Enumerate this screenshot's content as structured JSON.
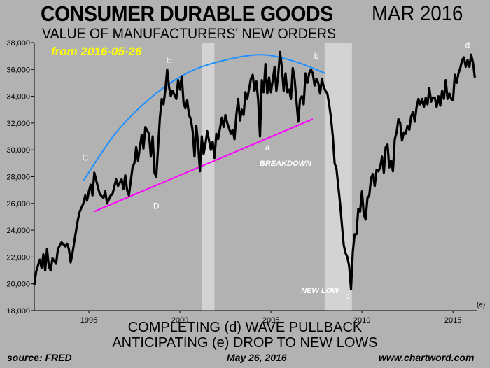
{
  "header": {
    "title": "CONSUMER DURABLE GOODS",
    "date": "MAR 2016",
    "subtitle": "VALUE OF MANUFACTURERS' NEW ORDERS",
    "from_date": "from 2016-05-26"
  },
  "captions": {
    "line1": "COMPLETING (d) WAVE PULLBACK",
    "line2": "ANTICIPATING (e) DROP TO NEW LOWS"
  },
  "footer": {
    "source": "source: FRED",
    "date": "May 26, 2016",
    "site": "www.chartword.com"
  },
  "colors": {
    "background": "#b2b2b2",
    "recession_band": "#d3d3d3",
    "series": "#000000",
    "arc": "#1e90ff",
    "trendline": "#ff00ff",
    "from_date": "#ffff00",
    "annotation": "#ffffff"
  },
  "chart_data": {
    "type": "line",
    "title": "CONSUMER DURABLE GOODS",
    "subtitle": "VALUE OF MANUFACTURERS' NEW ORDERS",
    "xlim": [
      1992,
      2016.3
    ],
    "ylim": [
      18000,
      38000
    ],
    "x_ticks": [
      1995,
      2000,
      2005,
      2010,
      2015
    ],
    "y_ticks": [
      "18,000",
      "20,000",
      "22,000",
      "24,000",
      "26,000",
      "28,000",
      "30,000",
      "32,000",
      "34,000",
      "36,000",
      "38,000"
    ],
    "grid": false,
    "recession_bands": [
      [
        2001.2,
        2001.9
      ],
      [
        2007.95,
        2009.45
      ]
    ],
    "series": [
      {
        "color": "#000000",
        "points": [
          [
            1992.0,
            19900
          ],
          [
            1992.1,
            20900
          ],
          [
            1992.3,
            21800
          ],
          [
            1992.4,
            21200
          ],
          [
            1992.5,
            22200
          ],
          [
            1992.6,
            21000
          ],
          [
            1992.7,
            22600
          ],
          [
            1992.8,
            21300
          ],
          [
            1992.9,
            21000
          ],
          [
            1993.0,
            21900
          ],
          [
            1993.2,
            21500
          ],
          [
            1993.3,
            22600
          ],
          [
            1993.5,
            23100
          ],
          [
            1993.7,
            22800
          ],
          [
            1993.8,
            23000
          ],
          [
            1993.9,
            22600
          ],
          [
            1994.0,
            21600
          ],
          [
            1994.1,
            22300
          ],
          [
            1994.3,
            24000
          ],
          [
            1994.4,
            24800
          ],
          [
            1994.5,
            25400
          ],
          [
            1994.7,
            26000
          ],
          [
            1994.8,
            26600
          ],
          [
            1994.9,
            26200
          ],
          [
            1995.0,
            26900
          ],
          [
            1995.1,
            27400
          ],
          [
            1995.2,
            26600
          ],
          [
            1995.3,
            28300
          ],
          [
            1995.5,
            27200
          ],
          [
            1995.6,
            26700
          ],
          [
            1995.8,
            26400
          ],
          [
            1995.9,
            26900
          ],
          [
            1996.0,
            26000
          ],
          [
            1996.2,
            26600
          ],
          [
            1996.3,
            26700
          ],
          [
            1996.5,
            27800
          ],
          [
            1996.6,
            27300
          ],
          [
            1996.8,
            27800
          ],
          [
            1996.9,
            27100
          ],
          [
            1997.0,
            28100
          ],
          [
            1997.1,
            27000
          ],
          [
            1997.2,
            26600
          ],
          [
            1997.4,
            28700
          ],
          [
            1997.5,
            29000
          ],
          [
            1997.6,
            30200
          ],
          [
            1997.7,
            29200
          ],
          [
            1997.9,
            31100
          ],
          [
            1998.0,
            30100
          ],
          [
            1998.1,
            31700
          ],
          [
            1998.3,
            31200
          ],
          [
            1998.4,
            29500
          ],
          [
            1998.5,
            31000
          ],
          [
            1998.6,
            28300
          ],
          [
            1998.7,
            28000
          ],
          [
            1998.9,
            32400
          ],
          [
            1999.0,
            33800
          ],
          [
            1999.1,
            33400
          ],
          [
            1999.2,
            34500
          ],
          [
            1999.3,
            36000
          ],
          [
            1999.4,
            34700
          ],
          [
            1999.5,
            34000
          ],
          [
            1999.6,
            34400
          ],
          [
            1999.8,
            33800
          ],
          [
            1999.9,
            35200
          ],
          [
            2000.0,
            34500
          ],
          [
            2000.1,
            35500
          ],
          [
            2000.2,
            33500
          ],
          [
            2000.3,
            33100
          ],
          [
            2000.4,
            33700
          ],
          [
            2000.5,
            32600
          ],
          [
            2000.6,
            32300
          ],
          [
            2000.7,
            31400
          ],
          [
            2000.8,
            29500
          ],
          [
            2000.9,
            31800
          ],
          [
            2001.0,
            30400
          ],
          [
            2001.1,
            28400
          ],
          [
            2001.2,
            31000
          ],
          [
            2001.3,
            29700
          ],
          [
            2001.4,
            30400
          ],
          [
            2001.5,
            31400
          ],
          [
            2001.7,
            30000
          ],
          [
            2001.8,
            30600
          ],
          [
            2001.9,
            29400
          ],
          [
            2002.0,
            31200
          ],
          [
            2002.1,
            30800
          ],
          [
            2002.3,
            32400
          ],
          [
            2002.4,
            31700
          ],
          [
            2002.5,
            32600
          ],
          [
            2002.6,
            32000
          ],
          [
            2002.8,
            31200
          ],
          [
            2002.9,
            31500
          ],
          [
            2003.0,
            30800
          ],
          [
            2003.1,
            32600
          ],
          [
            2003.2,
            33800
          ],
          [
            2003.3,
            32200
          ],
          [
            2003.4,
            33000
          ],
          [
            2003.5,
            32600
          ],
          [
            2003.6,
            34300
          ],
          [
            2003.7,
            33800
          ],
          [
            2003.9,
            35300
          ],
          [
            2004.0,
            35600
          ],
          [
            2004.1,
            34400
          ],
          [
            2004.2,
            35100
          ],
          [
            2004.3,
            33700
          ],
          [
            2004.4,
            31000
          ],
          [
            2004.5,
            35200
          ],
          [
            2004.6,
            34300
          ],
          [
            2004.7,
            36400
          ],
          [
            2004.8,
            34200
          ],
          [
            2004.9,
            35400
          ],
          [
            2005.0,
            34300
          ],
          [
            2005.1,
            35200
          ],
          [
            2005.2,
            36200
          ],
          [
            2005.3,
            34400
          ],
          [
            2005.4,
            35600
          ],
          [
            2005.5,
            37300
          ],
          [
            2005.6,
            36200
          ],
          [
            2005.7,
            34400
          ],
          [
            2005.8,
            35700
          ],
          [
            2005.9,
            34300
          ],
          [
            2006.0,
            34500
          ],
          [
            2006.1,
            33800
          ],
          [
            2006.2,
            36100
          ],
          [
            2006.3,
            35300
          ],
          [
            2006.4,
            33700
          ],
          [
            2006.5,
            32100
          ],
          [
            2006.6,
            33800
          ],
          [
            2006.7,
            34000
          ],
          [
            2006.8,
            33400
          ],
          [
            2006.9,
            35700
          ],
          [
            2007.0,
            35000
          ],
          [
            2007.1,
            35700
          ],
          [
            2007.2,
            36000
          ],
          [
            2007.3,
            35700
          ],
          [
            2007.4,
            34800
          ],
          [
            2007.5,
            35300
          ],
          [
            2007.6,
            35000
          ],
          [
            2007.7,
            34200
          ],
          [
            2007.8,
            35300
          ],
          [
            2007.9,
            34700
          ],
          [
            2008.0,
            34400
          ],
          [
            2008.1,
            34200
          ],
          [
            2008.2,
            33400
          ],
          [
            2008.3,
            32400
          ],
          [
            2008.4,
            31000
          ],
          [
            2008.5,
            29000
          ],
          [
            2008.6,
            28600
          ],
          [
            2008.7,
            27300
          ],
          [
            2008.8,
            26000
          ],
          [
            2008.9,
            24400
          ],
          [
            2009.0,
            22900
          ],
          [
            2009.1,
            22300
          ],
          [
            2009.2,
            22000
          ],
          [
            2009.3,
            21300
          ],
          [
            2009.4,
            19600
          ],
          [
            2009.5,
            22400
          ],
          [
            2009.6,
            23700
          ],
          [
            2009.7,
            23700
          ],
          [
            2009.8,
            25600
          ],
          [
            2009.9,
            25400
          ],
          [
            2010.0,
            26900
          ],
          [
            2010.1,
            25200
          ],
          [
            2010.2,
            24800
          ],
          [
            2010.3,
            26400
          ],
          [
            2010.4,
            26600
          ],
          [
            2010.5,
            27900
          ],
          [
            2010.6,
            28200
          ],
          [
            2010.7,
            27300
          ],
          [
            2010.8,
            28500
          ],
          [
            2010.9,
            28400
          ],
          [
            2011.0,
            28700
          ],
          [
            2011.1,
            29500
          ],
          [
            2011.2,
            28300
          ],
          [
            2011.3,
            30200
          ],
          [
            2011.4,
            30400
          ],
          [
            2011.5,
            28700
          ],
          [
            2011.6,
            29200
          ],
          [
            2011.7,
            28400
          ],
          [
            2011.8,
            30800
          ],
          [
            2011.9,
            31300
          ],
          [
            2012.0,
            32300
          ],
          [
            2012.1,
            32000
          ],
          [
            2012.2,
            30700
          ],
          [
            2012.3,
            31300
          ],
          [
            2012.4,
            31200
          ],
          [
            2012.5,
            31800
          ],
          [
            2012.6,
            31500
          ],
          [
            2012.7,
            32500
          ],
          [
            2012.8,
            32800
          ],
          [
            2012.9,
            32100
          ],
          [
            2013.0,
            33200
          ],
          [
            2013.1,
            33800
          ],
          [
            2013.2,
            33400
          ],
          [
            2013.3,
            33800
          ],
          [
            2013.4,
            33200
          ],
          [
            2013.5,
            33900
          ],
          [
            2013.6,
            33400
          ],
          [
            2013.7,
            34600
          ],
          [
            2013.8,
            33600
          ],
          [
            2013.9,
            33900
          ],
          [
            2014.0,
            33900
          ],
          [
            2014.1,
            33200
          ],
          [
            2014.2,
            34000
          ],
          [
            2014.3,
            33300
          ],
          [
            2014.4,
            34400
          ],
          [
            2014.5,
            33800
          ],
          [
            2014.6,
            35200
          ],
          [
            2014.7,
            33800
          ],
          [
            2014.8,
            34200
          ],
          [
            2014.9,
            33800
          ],
          [
            2015.0,
            33700
          ],
          [
            2015.1,
            35600
          ],
          [
            2015.2,
            35000
          ],
          [
            2015.3,
            35700
          ],
          [
            2015.4,
            36100
          ],
          [
            2015.5,
            36700
          ],
          [
            2015.6,
            36900
          ],
          [
            2015.7,
            36200
          ],
          [
            2015.8,
            36700
          ],
          [
            2015.9,
            36200
          ],
          [
            2016.0,
            37100
          ],
          [
            2016.1,
            36500
          ],
          [
            2016.2,
            35400
          ]
        ]
      }
    ],
    "wave_arc": [
      [
        1994.7,
        27700
      ],
      [
        1996.5,
        31300
      ],
      [
        1998.5,
        34000
      ],
      [
        2000.5,
        35800
      ],
      [
        2002.5,
        36700
      ],
      [
        2004.5,
        37100
      ],
      [
        2006.3,
        36600
      ],
      [
        2008.0,
        35700
      ]
    ],
    "trendline": [
      [
        1995.3,
        25400
      ],
      [
        2007.3,
        32300
      ]
    ],
    "annotations": [
      {
        "text": "C",
        "x": 1994.8,
        "y": 29200
      },
      {
        "text": "D",
        "x": 1998.7,
        "y": 25600
      },
      {
        "text": "E",
        "x": 1999.4,
        "y": 36500
      },
      {
        "text": "a",
        "x": 2004.8,
        "y": 30000
      },
      {
        "text": "b",
        "x": 2007.5,
        "y": 36800
      },
      {
        "text": "c",
        "x": 2009.2,
        "y": 18900
      },
      {
        "text": "d",
        "x": 2015.8,
        "y": 37600
      },
      {
        "text": "(e)",
        "x": 2016.5,
        "y": 18300
      },
      {
        "text": "BREAKDOWN",
        "x": 2005.8,
        "y": 28800,
        "style": "bold"
      },
      {
        "text": "NEW LOW",
        "x": 2007.7,
        "y": 19300,
        "style": "bold"
      }
    ]
  }
}
